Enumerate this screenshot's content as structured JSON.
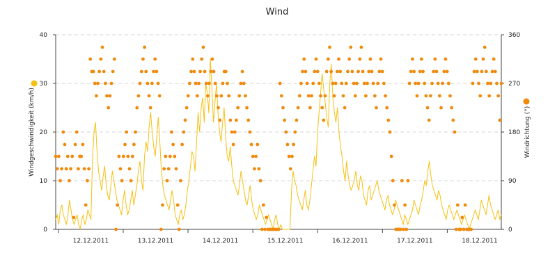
{
  "chart_data": {
    "type": "line",
    "title": "Wind",
    "x_range": [
      "11.12.2011 23:00",
      "18.12.2011 20:00"
    ],
    "x_tick_labels": [
      "12.12.2011",
      "13.12.2011",
      "14.12.2011",
      "15.12.2011",
      "16.12.2011",
      "17.12.2011",
      "18.12.2011"
    ],
    "ylabel_left": "Windgeschwindigkeit (km/h)",
    "ylabel_right": "Windrichtung (°)",
    "ylim_left": [
      0,
      40
    ],
    "yticks_left": [
      "0",
      "10",
      "20",
      "30",
      "40"
    ],
    "ylim_right": [
      0,
      360
    ],
    "yticks_right": [
      "0",
      "90",
      "180",
      "270",
      "360"
    ],
    "grid": "horizontal dashed",
    "series": [
      {
        "name": "",
        "axis": "left",
        "type": "line",
        "color": "#f5c011",
        "description_values": "hourly wind speed (km/h), estimated",
        "values": [
          2,
          3,
          1,
          4,
          5,
          3,
          2,
          1,
          3,
          6,
          4,
          2,
          1,
          2,
          3,
          1,
          0,
          2,
          3,
          1,
          2,
          4,
          3,
          2,
          14,
          20,
          22,
          16,
          12,
          10,
          8,
          11,
          13,
          9,
          7,
          6,
          9,
          12,
          10,
          8,
          6,
          5,
          4,
          3,
          6,
          8,
          5,
          3,
          4,
          6,
          8,
          5,
          7,
          9,
          12,
          14,
          10,
          8,
          15,
          18,
          16,
          21,
          24,
          20,
          17,
          15,
          19,
          23,
          18,
          12,
          9,
          7,
          6,
          5,
          4,
          6,
          8,
          6,
          3,
          2,
          1,
          3,
          4,
          2,
          3,
          5,
          8,
          10,
          13,
          16,
          15,
          12,
          18,
          24,
          20,
          25,
          27,
          22,
          30,
          28,
          24,
          35,
          29,
          22,
          26,
          30,
          24,
          20,
          18,
          22,
          25,
          19,
          15,
          14,
          17,
          13,
          10,
          9,
          8,
          7,
          9,
          12,
          10,
          8,
          6,
          5,
          7,
          9,
          6,
          4,
          3,
          2,
          3,
          5,
          4,
          3,
          2,
          1,
          2,
          3,
          2,
          1,
          0,
          2,
          3,
          1,
          0,
          1,
          0,
          0,
          0,
          0,
          0,
          0,
          8,
          12,
          10,
          9,
          7,
          6,
          5,
          4,
          6,
          8,
          5,
          4,
          6,
          9,
          12,
          15,
          13,
          20,
          24,
          28,
          32,
          29,
          26,
          23,
          21,
          30,
          34,
          27,
          24,
          22,
          25,
          20,
          17,
          15,
          12,
          10,
          14,
          11,
          9,
          8,
          9,
          10,
          12,
          9,
          8,
          11,
          10,
          7,
          6,
          5,
          8,
          9,
          6,
          7,
          8,
          9,
          10,
          8,
          7,
          6,
          5,
          4,
          6,
          7,
          5,
          4,
          3,
          4,
          6,
          5,
          4,
          3,
          2,
          1,
          3,
          2,
          1,
          2,
          3,
          4,
          6,
          5,
          4,
          3,
          5,
          6,
          8,
          10,
          9,
          12,
          14,
          11,
          9,
          8,
          7,
          6,
          8,
          7,
          5,
          4,
          3,
          2,
          4,
          5,
          4,
          3,
          2,
          3,
          4,
          3,
          2,
          1,
          2,
          3,
          2,
          1,
          0,
          1,
          2,
          3,
          4,
          3,
          2,
          4,
          6,
          5,
          4,
          3,
          5,
          7,
          5,
          4,
          3,
          2,
          3,
          4,
          2,
          3
        ]
      },
      {
        "name": "",
        "axis": "right",
        "type": "scatter",
        "color": "#f08a0c",
        "description_values": "wind direction (°), estimated",
        "values": [
          135,
          112,
          135,
          90,
          112,
          180,
          157,
          112,
          135,
          90,
          112,
          135,
          22,
          157,
          180,
          112,
          135,
          135,
          157,
          112,
          45,
          90,
          112,
          315,
          292,
          292,
          270,
          247,
          270,
          292,
          315,
          337,
          292,
          270,
          247,
          225,
          247,
          270,
          292,
          315,
          0,
          45,
          135,
          112,
          90,
          135,
          157,
          180,
          135,
          112,
          90,
          135,
          157,
          180,
          225,
          247,
          270,
          292,
          315,
          337,
          292,
          270,
          247,
          225,
          270,
          292,
          315,
          292,
          270,
          247,
          0,
          45,
          112,
          135,
          90,
          112,
          135,
          180,
          157,
          135,
          112,
          45,
          0,
          90,
          157,
          180,
          202,
          225,
          247,
          270,
          292,
          315,
          292,
          270,
          247,
          270,
          292,
          315,
          337,
          292,
          270,
          247,
          270,
          292,
          315,
          292,
          270,
          247,
          225,
          202,
          247,
          270,
          292,
          292,
          270,
          247,
          202,
          180,
          157,
          180,
          202,
          225,
          247,
          270,
          292,
          270,
          247,
          225,
          202,
          180,
          157,
          135,
          112,
          135,
          157,
          112,
          90,
          0,
          45,
          0,
          22,
          0,
          0,
          0,
          0,
          0,
          0,
          0,
          0,
          270,
          247,
          225,
          202,
          180,
          157,
          135,
          112,
          135,
          157,
          180,
          202,
          225,
          247,
          270,
          292,
          315,
          292,
          270,
          247,
          225,
          247,
          270,
          292,
          315,
          292,
          270,
          247,
          225,
          202,
          247,
          292,
          315,
          337,
          292,
          270,
          247,
          270,
          292,
          315,
          292,
          270,
          247,
          225,
          270,
          292,
          315,
          337,
          292,
          270,
          247,
          270,
          292,
          315,
          337,
          292,
          270,
          247,
          270,
          292,
          315,
          292,
          270,
          247,
          225,
          270,
          292,
          315,
          292,
          270,
          247,
          225,
          202,
          180,
          135,
          90,
          45,
          0,
          0,
          0,
          0,
          90,
          0,
          45,
          0,
          90,
          270,
          292,
          315,
          292,
          270,
          247,
          270,
          292,
          315,
          292,
          270,
          247,
          225,
          202,
          247,
          270,
          292,
          315,
          292,
          270,
          247,
          225,
          270,
          292,
          315,
          292,
          270,
          247,
          225,
          202,
          180,
          0,
          45,
          0,
          0,
          22,
          0,
          45,
          0,
          0,
          0,
          0,
          270,
          292,
          315,
          292,
          270,
          247,
          292,
          315,
          337,
          292,
          270,
          247,
          270,
          292,
          315,
          292,
          270,
          247,
          202,
          270
        ]
      }
    ]
  }
}
